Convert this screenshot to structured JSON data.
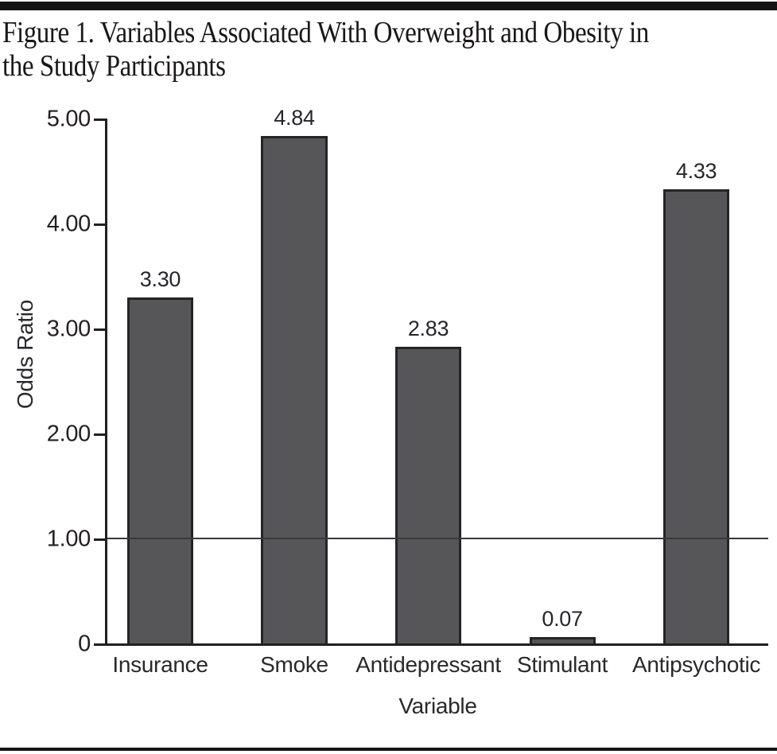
{
  "figure": {
    "title_line1": "Figure 1. Variables Associated With Overweight and Obesity in",
    "title_line2": "the Study Participants"
  },
  "chart_data": {
    "type": "bar",
    "title": "Figure 1. Variables Associated With Overweight and Obesity in the Study Participants",
    "categories": [
      "Insurance",
      "Smoke",
      "Antidepressant",
      "Stimulant",
      "Antipsychotic"
    ],
    "values": [
      3.3,
      4.84,
      2.83,
      0.07,
      4.33
    ],
    "value_labels": [
      "3.30",
      "4.84",
      "2.83",
      "0.07",
      "4.33"
    ],
    "xlabel": "Variable",
    "ylabel": "Odds Ratio",
    "ylim": [
      0,
      5
    ],
    "yticks": [
      {
        "value": 5,
        "label": "5.00"
      },
      {
        "value": 4,
        "label": "4.00"
      },
      {
        "value": 3,
        "label": "3.00"
      },
      {
        "value": 2,
        "label": "2.00"
      },
      {
        "value": 1,
        "label": "1.00"
      },
      {
        "value": 0,
        "label": "0"
      }
    ],
    "reference_line": 1.0,
    "bar_color": "#565658",
    "bar_border_color": "#262326",
    "grid": false,
    "legend": false
  }
}
